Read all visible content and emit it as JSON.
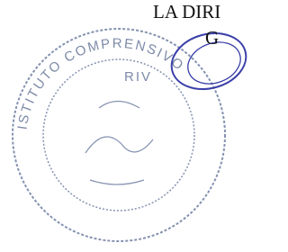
{
  "header": {
    "line1": "LA DIRI",
    "line2": "G"
  },
  "stamp": {
    "ring_text": "ISTITUTO COMPRENSIVO",
    "inner_text": "RIV"
  }
}
